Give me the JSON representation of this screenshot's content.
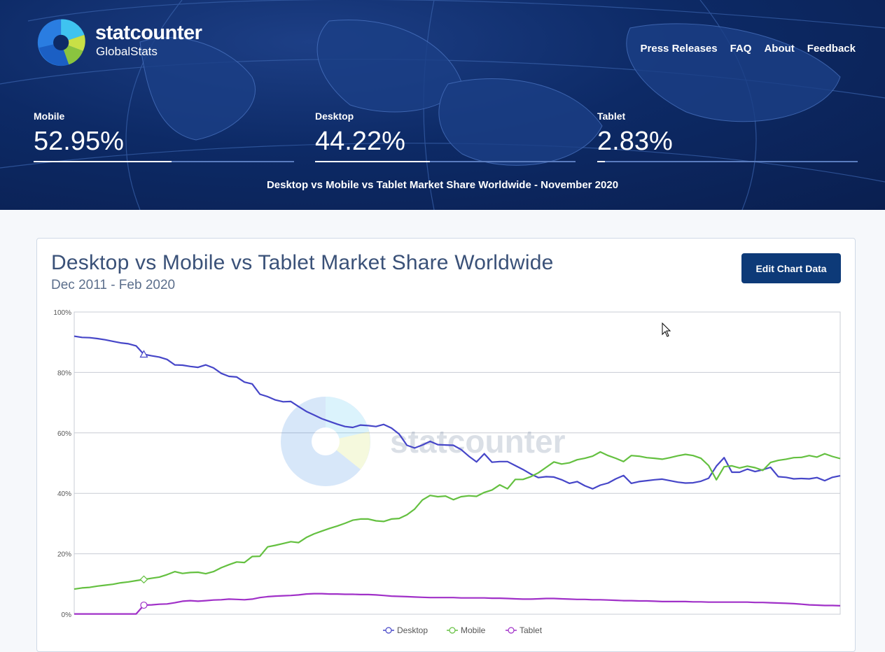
{
  "header": {
    "brand": "statcounter",
    "sub_brand": "GlobalStats",
    "nav": [
      "Press Releases",
      "FAQ",
      "About",
      "Feedback"
    ],
    "stats": [
      {
        "label": "Mobile",
        "value": "52.95%",
        "fraction": 0.5295
      },
      {
        "label": "Desktop",
        "value": "44.22%",
        "fraction": 0.4422
      },
      {
        "label": "Tablet",
        "value": "2.83%",
        "fraction": 0.0283
      }
    ],
    "headline": "Desktop vs Mobile vs Tablet Market Share Worldwide - November 2020"
  },
  "card": {
    "title": "Desktop vs Mobile vs Tablet Market Share Worldwide",
    "subtitle": "Dec 2011 - Feb 2020",
    "edit_button": "Edit Chart Data",
    "watermark": "statcounter"
  },
  "colors": {
    "desktop": "#4646c8",
    "mobile": "#64c040",
    "tablet": "#a030c8",
    "grid": "#c8ccd4",
    "axis_text": "#555555"
  },
  "chart_data": {
    "type": "line",
    "ylim": [
      0,
      100
    ],
    "yticks": [
      "0%",
      "20%",
      "40%",
      "60%",
      "80%",
      "100%"
    ],
    "y_tick_values": [
      0,
      20,
      40,
      60,
      80,
      100
    ],
    "grid": true,
    "legend_placement": "bottom-center",
    "series": [
      {
        "name": "Desktop",
        "marker": "triangle",
        "values": [
          92,
          91.6,
          91.5,
          91.2,
          90.8,
          90.3,
          89.8,
          89.5,
          88.8,
          86,
          85.5,
          85.1,
          84.3,
          82.5,
          82.4,
          82,
          81.7,
          82.5,
          81.5,
          79.7,
          78.7,
          78.5,
          76.8,
          76.2,
          72.8,
          72,
          70.9,
          70.3,
          70.4,
          68.7,
          67.1,
          65.9,
          64.7,
          63.8,
          62.9,
          62.1,
          61.8,
          62.6,
          62.4,
          62.1,
          62.8,
          61.6,
          59.6,
          55.9,
          55,
          56,
          57.2,
          56.1,
          56,
          55.9,
          54.5,
          52.3,
          50.4,
          53.1,
          50.3,
          50.5,
          50.5,
          49.2,
          47.9,
          46.4,
          45.2,
          45.5,
          45.4,
          44.5,
          43.3,
          43.9,
          42.5,
          41.5,
          42.7,
          43.4,
          44.8,
          45.9,
          43.3,
          43.9,
          44.2,
          44.5,
          44.7,
          44.2,
          43.7,
          43.4,
          43.5,
          44,
          45,
          49,
          51.8,
          47,
          47,
          48,
          47.2,
          47.8,
          48.6,
          45.5,
          45.3,
          44.8,
          44.9,
          44.8,
          45.2,
          44.2,
          45.3,
          45.8
        ]
      },
      {
        "name": "Mobile",
        "marker": "diamond",
        "values": [
          8.3,
          8.7,
          8.9,
          9.3,
          9.6,
          9.9,
          10.4,
          10.7,
          11.1,
          11.5,
          11.9,
          12.3,
          13.1,
          14.1,
          13.5,
          13.8,
          13.9,
          13.4,
          14.1,
          15.4,
          16.4,
          17.3,
          17.1,
          19.1,
          19.2,
          22.3,
          22.8,
          23.4,
          24,
          23.7,
          25.4,
          26.6,
          27.5,
          28.4,
          29.2,
          30.1,
          31.1,
          31.5,
          31.5,
          30.9,
          30.7,
          31.5,
          31.7,
          32.9,
          34.8,
          37.8,
          39.3,
          38.9,
          39.1,
          37.9,
          38.9,
          39.2,
          39,
          40.3,
          41.1,
          42.8,
          41.5,
          44.6,
          44.6,
          45.5,
          46.8,
          48.6,
          50.4,
          49.7,
          50.1,
          51.1,
          51.6,
          52.3,
          53.7,
          52.5,
          51.6,
          50.5,
          52.5,
          52.3,
          51.8,
          51.6,
          51.3,
          51.8,
          52.4,
          52.9,
          52.5,
          51.6,
          49.2,
          44.5,
          48.8,
          49.1,
          48.4,
          49,
          48.5,
          47.6,
          50.2,
          50.9,
          51.3,
          51.8,
          51.9,
          52.5,
          52,
          53.1,
          52.2,
          51.5
        ]
      },
      {
        "name": "Tablet",
        "marker": "circle",
        "values": [
          0.1,
          0.1,
          0.1,
          0.1,
          0.1,
          0.1,
          0.1,
          0.1,
          0.1,
          3,
          3.1,
          3.3,
          3.4,
          3.8,
          4.3,
          4.5,
          4.3,
          4.5,
          4.7,
          4.8,
          5,
          4.9,
          4.8,
          5,
          5.5,
          5.8,
          6,
          6.1,
          6.2,
          6.4,
          6.7,
          6.8,
          6.8,
          6.7,
          6.7,
          6.6,
          6.6,
          6.5,
          6.5,
          6.4,
          6.2,
          6,
          5.9,
          5.8,
          5.7,
          5.6,
          5.5,
          5.5,
          5.5,
          5.5,
          5.4,
          5.4,
          5.4,
          5.4,
          5.3,
          5.3,
          5.2,
          5.1,
          5,
          5,
          5.1,
          5.2,
          5.2,
          5.1,
          5,
          4.9,
          4.9,
          4.8,
          4.8,
          4.7,
          4.6,
          4.5,
          4.5,
          4.4,
          4.4,
          4.3,
          4.2,
          4.2,
          4.2,
          4.2,
          4.1,
          4.1,
          4,
          4,
          4,
          4,
          4,
          4,
          3.9,
          3.9,
          3.8,
          3.7,
          3.6,
          3.5,
          3.3,
          3.1,
          3,
          2.9,
          2.9,
          2.8
        ]
      }
    ]
  }
}
